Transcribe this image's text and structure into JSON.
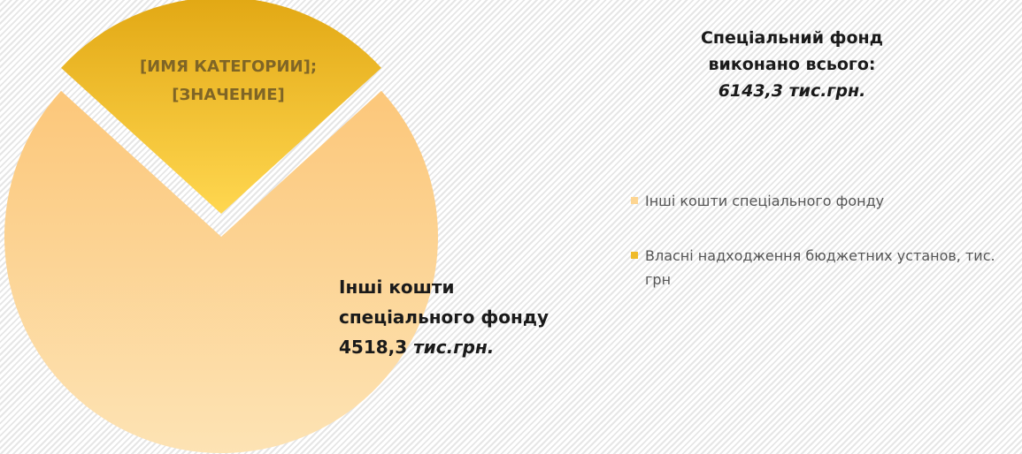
{
  "chart_data": {
    "type": "pie",
    "title": "Спеціальний фонд виконано всього:",
    "subtitle": "6143,3 тис.грн.",
    "categories": [
      "Інші кошти спеціального фонду",
      "Власні надходження бюджетних установ, тис. грн"
    ],
    "values": [
      4518.3,
      1625.0
    ],
    "value_labels": [
      "4518,3",
      null
    ],
    "value_label_unit": "тис.грн.",
    "placeholder_label": "[ИМЯ КАТЕГОРИИ]; [ЗНАЧЕНИЕ]",
    "colors": [
      "#fdd591",
      "#efbb2a"
    ],
    "legend": "right"
  }
}
